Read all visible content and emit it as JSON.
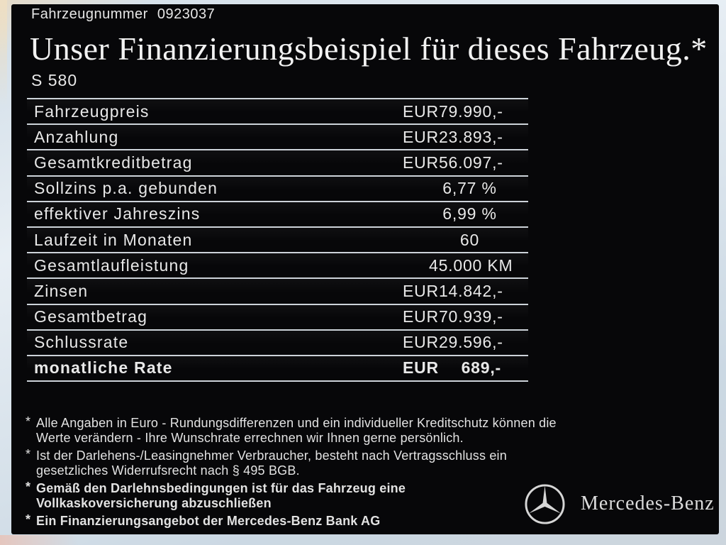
{
  "header": {
    "vehicle_number_label": "Fahrzeugnummer",
    "vehicle_number": "0923037",
    "title": "Unser Finanzierungsbeispiel für dieses Fahrzeug.*",
    "model": "S 580"
  },
  "financing_table": {
    "rows": [
      {
        "label": "Fahrzeugpreis",
        "currency": "EUR",
        "amount": "79.990,-"
      },
      {
        "label": "Anzahlung",
        "currency": "EUR",
        "amount": "23.893,-"
      },
      {
        "label": "Gesamtkreditbetrag",
        "currency": "EUR",
        "amount": "56.097,-"
      },
      {
        "label": "Sollzins p.a. gebunden",
        "value": "6,77 %"
      },
      {
        "label": "effektiver Jahreszins",
        "value": "6,99 %"
      },
      {
        "label": "Laufzeit in Monaten",
        "value": "60"
      },
      {
        "label": "Gesamtlaufleistung",
        "value": "45.000 KM"
      },
      {
        "label": "Zinsen",
        "currency": "EUR",
        "amount": "14.842,-"
      },
      {
        "label": "Gesamtbetrag",
        "currency": "EUR",
        "amount": "70.939,-"
      },
      {
        "label": "Schlussrate",
        "currency": "EUR",
        "amount": "29.596,-"
      },
      {
        "label": "monatliche Rate",
        "currency": "EUR",
        "amount": "689,-",
        "bold": true
      }
    ]
  },
  "footnotes": {
    "marker": "*",
    "items": [
      {
        "bold": false,
        "lines": [
          "Alle Angaben in Euro - Rundungsdifferenzen und ein individueller Kreditschutz können die",
          "Werte verändern - Ihre Wunschrate errechnen wir Ihnen gerne persönlich."
        ]
      },
      {
        "bold": false,
        "lines": [
          "Ist der Darlehens-/Leasingnehmer Verbraucher, besteht nach Vertragsschluss ein",
          "gesetzliches Widerrufsrecht nach § 495 BGB."
        ]
      },
      {
        "bold": true,
        "lines": [
          "Gemäß den Darlehnsbedingungen ist für das Fahrzeug eine",
          "Vollkaskoversicherung abzuschließen"
        ]
      },
      {
        "bold": true,
        "lines": [
          "Ein Finanzierungsangebot der Mercedes-Benz Bank AG"
        ]
      }
    ]
  },
  "brand": {
    "logo": "mercedes-star-icon",
    "wordmark": "Mercedes-Benz"
  },
  "colors": {
    "panel_bg": "#070709",
    "text": "#ececec",
    "divider_line": "#cdd3d9",
    "frame": "#ccd8e2"
  }
}
